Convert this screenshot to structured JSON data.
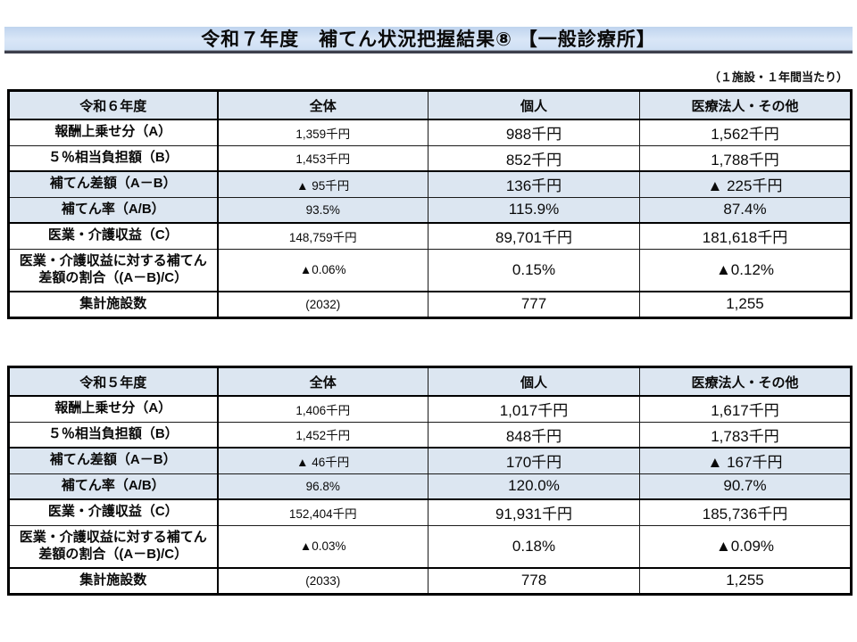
{
  "title": "令和７年度　補てん状況把握結果⑧ 【一般診療所】",
  "note": "（１施設・１年間当たり）",
  "colors": {
    "highlight_fill": "#dce6f1",
    "band_top": "#bfd4ee",
    "band_bottom": "#d9e6f7",
    "rule": "#3d3f4c",
    "border": "#000000"
  },
  "tables": [
    {
      "year_label": "令和６年度",
      "columns": [
        "全体",
        "個人",
        "医療法人・その他"
      ],
      "rows": [
        {
          "label": "報酬上乗せ分（A）",
          "values": [
            "1,359千円",
            "988千円",
            "1,562千円"
          ],
          "highlight": false,
          "thick_top": false,
          "tall": false
        },
        {
          "label": "５％相当負担額（B）",
          "values": [
            "1,453千円",
            "852千円",
            "1,788千円"
          ],
          "highlight": false,
          "thick_top": false,
          "tall": false
        },
        {
          "label": "補てん差額（A－B）",
          "values": [
            "▲ 95千円",
            "136千円",
            "▲ 225千円"
          ],
          "highlight": true,
          "thick_top": true,
          "tall": false
        },
        {
          "label": "補てん率（A/B）",
          "values": [
            "93.5%",
            "115.9%",
            "87.4%"
          ],
          "highlight": true,
          "thick_top": false,
          "tall": false
        },
        {
          "label": "医業・介護収益（C）",
          "values": [
            "148,759千円",
            "89,701千円",
            "181,618千円"
          ],
          "highlight": false,
          "thick_top": true,
          "tall": false
        },
        {
          "label": "医業・介護収益に対する補てん差額の割合（(A－B)/C）",
          "values": [
            "▲0.06%",
            "0.15%",
            "▲0.12%"
          ],
          "highlight": false,
          "thick_top": false,
          "tall": true
        },
        {
          "label": "集計施設数",
          "values": [
            "(2032)",
            "777",
            "1,255"
          ],
          "highlight": false,
          "thick_top": true,
          "tall": false
        }
      ]
    },
    {
      "year_label": "令和５年度",
      "columns": [
        "全体",
        "個人",
        "医療法人・その他"
      ],
      "rows": [
        {
          "label": "報酬上乗せ分（A）",
          "values": [
            "1,406千円",
            "1,017千円",
            "1,617千円"
          ],
          "highlight": false,
          "thick_top": false,
          "tall": false
        },
        {
          "label": "５％相当負担額（B）",
          "values": [
            "1,452千円",
            "848千円",
            "1,783千円"
          ],
          "highlight": false,
          "thick_top": false,
          "tall": false
        },
        {
          "label": "補てん差額（A－B）",
          "values": [
            "▲ 46千円",
            "170千円",
            "▲ 167千円"
          ],
          "highlight": true,
          "thick_top": true,
          "tall": false
        },
        {
          "label": "補てん率（A/B）",
          "values": [
            "96.8%",
            "120.0%",
            "90.7%"
          ],
          "highlight": true,
          "thick_top": false,
          "tall": false
        },
        {
          "label": "医業・介護収益（C）",
          "values": [
            "152,404千円",
            "91,931千円",
            "185,736千円"
          ],
          "highlight": false,
          "thick_top": true,
          "tall": false
        },
        {
          "label": "医業・介護収益に対する補てん差額の割合（(A－B)/C）",
          "values": [
            "▲0.03%",
            "0.18%",
            "▲0.09%"
          ],
          "highlight": false,
          "thick_top": false,
          "tall": true
        },
        {
          "label": "集計施設数",
          "values": [
            "(2033)",
            "778",
            "1,255"
          ],
          "highlight": false,
          "thick_top": true,
          "tall": false
        }
      ]
    }
  ]
}
